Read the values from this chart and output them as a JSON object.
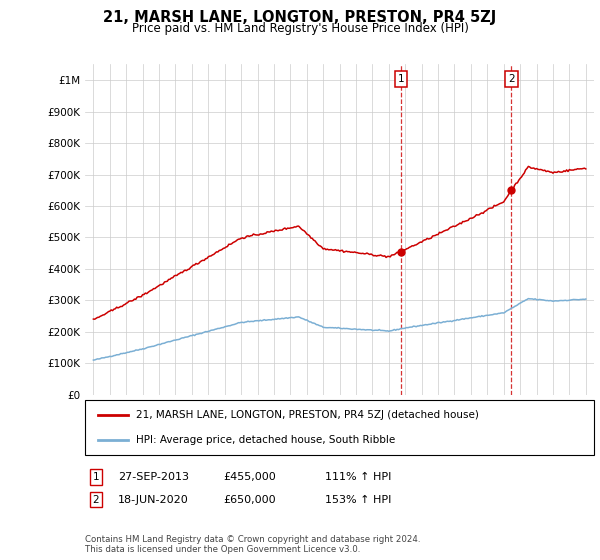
{
  "title": "21, MARSH LANE, LONGTON, PRESTON, PR4 5ZJ",
  "subtitle": "Price paid vs. HM Land Registry's House Price Index (HPI)",
  "legend_line1": "21, MARSH LANE, LONGTON, PRESTON, PR4 5ZJ (detached house)",
  "legend_line2": "HPI: Average price, detached house, South Ribble",
  "sale1_date": "27-SEP-2013",
  "sale1_price": 455000,
  "sale1_hpi_pct": "111% ↑ HPI",
  "sale1_year": 2013.75,
  "sale2_date": "18-JUN-2020",
  "sale2_price": 650000,
  "sale2_hpi_pct": "153% ↑ HPI",
  "sale2_year": 2020.46,
  "ylim": [
    0,
    1050000
  ],
  "xlim_start": 1994.5,
  "xlim_end": 2025.5,
  "yticks": [
    0,
    100000,
    200000,
    300000,
    400000,
    500000,
    600000,
    700000,
    800000,
    900000,
    1000000
  ],
  "ytick_labels": [
    "£0",
    "£100K",
    "£200K",
    "£300K",
    "£400K",
    "£500K",
    "£600K",
    "£700K",
    "£800K",
    "£900K",
    "£1M"
  ],
  "footnote1": "Contains HM Land Registry data © Crown copyright and database right 2024.",
  "footnote2": "This data is licensed under the Open Government Licence v3.0.",
  "line_color_red": "#cc0000",
  "line_color_blue": "#7bafd4",
  "background_color": "#ffffff",
  "grid_color": "#cccccc"
}
